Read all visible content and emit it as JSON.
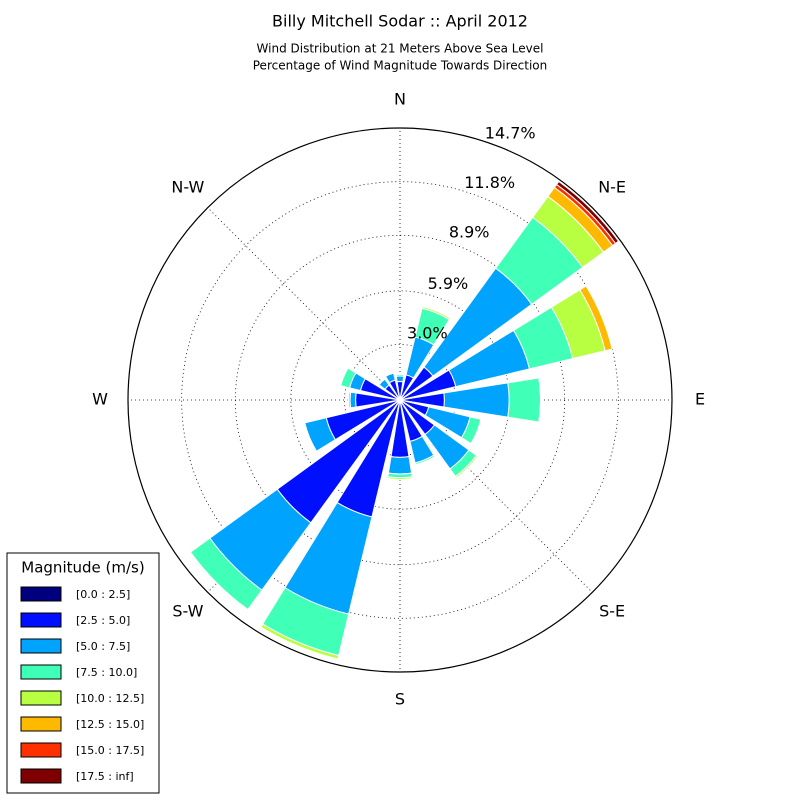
{
  "chart_data": {
    "type": "windrose",
    "title": "Billy Mitchell Sodar :: April 2012",
    "subtitle": [
      "Wind Distribution at 21 Meters Above Sea Level",
      "Percentage of Wind Magnitude Towards Direction"
    ],
    "direction_labels": [
      "N",
      "N-E",
      "E",
      "S-E",
      "S",
      "S-W",
      "W",
      "N-W"
    ],
    "rlim": [
      0,
      14.7
    ],
    "rticks": [
      {
        "value": 3.0,
        "label": "3.0%"
      },
      {
        "value": 5.9,
        "label": "5.9%"
      },
      {
        "value": 8.9,
        "label": "8.9%"
      },
      {
        "value": 11.8,
        "label": "11.8%"
      },
      {
        "value": 14.7,
        "label": "14.7%"
      }
    ],
    "grid": true,
    "legend_title": "Magnitude (m/s)",
    "legend_position": "lower left",
    "series": [
      {
        "name": "[0.0 : 2.5]",
        "color": "#00007f",
        "values": [
          0.1,
          0.1,
          0.1,
          0.1,
          0.1,
          0.1,
          0.1,
          0.1,
          0.1,
          0.1,
          0.1,
          0.1,
          0.1,
          0.1,
          0.1,
          0.1
        ]
      },
      {
        "name": "[2.5 : 5.0]",
        "color": "#0010ff",
        "values": [
          0.9,
          1.3,
          2.1,
          3.0,
          2.3,
          1.5,
          2.2,
          2.2,
          3.0,
          6.4,
          8.1,
          4.0,
          2.3,
          2.1,
          0.9,
          1.0
        ]
      },
      {
        "name": "[5.0 : 7.5]",
        "color": "#00a4ff",
        "values": [
          0.3,
          2.1,
          6.6,
          4.1,
          3.5,
          2.3,
          2.3,
          1.2,
          0.9,
          5.4,
          4.5,
          1.2,
          0.3,
          0.6,
          0.4,
          0.4
        ]
      },
      {
        "name": "[7.5 : 10.0]",
        "color": "#40ffb7",
        "values": [
          0.1,
          1.6,
          3.4,
          2.4,
          1.7,
          0.6,
          0.5,
          0.1,
          0.2,
          2.3,
          1.3,
          0,
          0.1,
          0.5,
          0,
          0
        ]
      },
      {
        "name": "[10.0 : 12.5]",
        "color": "#b7ff40",
        "values": [
          0,
          0.1,
          1.4,
          1.8,
          0,
          0,
          0.1,
          0,
          0.1,
          0.2,
          0,
          0,
          0,
          0,
          0,
          0
        ]
      },
      {
        "name": "[12.5 : 15.0]",
        "color": "#ffb900",
        "values": [
          0,
          0,
          0.6,
          0.4,
          0,
          0,
          0,
          0,
          0,
          0,
          0,
          0,
          0,
          0,
          0,
          0
        ]
      },
      {
        "name": "[15.0 : 17.5]",
        "color": "#ff3000",
        "values": [
          0,
          0,
          0.2,
          0,
          0,
          0,
          0,
          0,
          0,
          0,
          0,
          0,
          0,
          0,
          0,
          0
        ]
      },
      {
        "name": "[17.5 : inf]",
        "color": "#7f0000",
        "values": [
          0,
          0,
          0.2,
          0,
          0,
          0,
          0,
          0,
          0,
          0,
          0,
          0,
          0,
          0,
          0,
          0
        ]
      }
    ]
  }
}
